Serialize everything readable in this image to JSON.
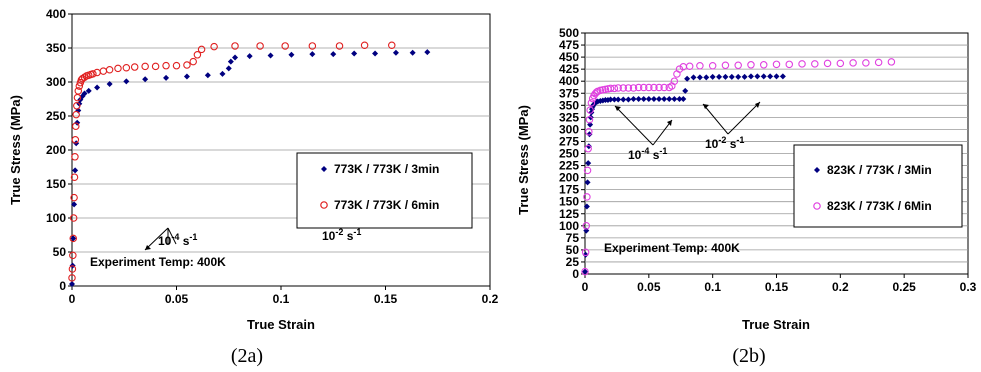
{
  "captions": [
    "(2a)",
    "(2b)"
  ],
  "chart_data": [
    {
      "type": "scatter",
      "xlabel": "True Strain",
      "ylabel": "True Stress (MPa)",
      "xlim": [
        0,
        0.2
      ],
      "ylim": [
        0,
        400
      ],
      "xticks": [
        0,
        0.05,
        0.1,
        0.15,
        0.2
      ],
      "xtick_labels": [
        "0",
        "0.05",
        "0.1",
        "0.15",
        "0.2"
      ],
      "yticks": [
        0,
        50,
        100,
        150,
        200,
        250,
        300,
        350,
        400
      ],
      "ytick_labels": [
        "0",
        "50",
        "100",
        "150",
        "200",
        "250",
        "300",
        "350",
        "400"
      ],
      "annotation": "Experiment Temp: 400K",
      "rate_labels": [
        {
          "base": "10",
          "exp1": "-4",
          "unit": " s",
          "exp2": "-1"
        },
        {
          "base": "10",
          "exp1": "-2",
          "unit": " s",
          "exp2": "-1"
        }
      ],
      "legend_position": "right",
      "series": [
        {
          "name": "773K / 773K / 3min",
          "marker": "diamond",
          "color": "#000080",
          "x": [
            0.0,
            0.0003,
            0.0006,
            0.001,
            0.0015,
            0.002,
            0.0025,
            0.003,
            0.0035,
            0.004,
            0.005,
            0.006,
            0.008,
            0.012,
            0.018,
            0.026,
            0.035,
            0.045,
            0.055,
            0.065,
            0.072,
            0.075,
            0.076,
            0.078,
            0.085,
            0.095,
            0.105,
            0.115,
            0.125,
            0.135,
            0.145,
            0.155,
            0.163,
            0.17
          ],
          "y": [
            3,
            30,
            70,
            120,
            170,
            210,
            240,
            258,
            268,
            274,
            279,
            283,
            287,
            292,
            297,
            301,
            304,
            306,
            308,
            310,
            312,
            320,
            330,
            336,
            338,
            339,
            340,
            341,
            341,
            342,
            342,
            343,
            343,
            344
          ]
        },
        {
          "name": "773K / 773K / 6min",
          "marker": "circle",
          "color": "#e02020",
          "x": [
            0.0,
            0.0002,
            0.0004,
            0.0006,
            0.0008,
            0.001,
            0.0012,
            0.0014,
            0.0016,
            0.0018,
            0.002,
            0.0023,
            0.0026,
            0.003,
            0.0035,
            0.004,
            0.0045,
            0.005,
            0.006,
            0.007,
            0.008,
            0.009,
            0.01,
            0.012,
            0.015,
            0.018,
            0.022,
            0.026,
            0.03,
            0.035,
            0.04,
            0.045,
            0.05,
            0.055,
            0.058,
            0.06,
            0.062,
            0.068,
            0.078,
            0.09,
            0.102,
            0.115,
            0.128,
            0.14,
            0.153
          ],
          "y": [
            12,
            25,
            45,
            70,
            100,
            130,
            160,
            190,
            215,
            235,
            252,
            265,
            277,
            287,
            294,
            299,
            303,
            305,
            307,
            309,
            310,
            311,
            312,
            314,
            316,
            318,
            320,
            321,
            322,
            323,
            323,
            324,
            324,
            325,
            330,
            340,
            348,
            352,
            353,
            353,
            353,
            353,
            353,
            354,
            354
          ]
        }
      ]
    },
    {
      "type": "scatter",
      "xlabel": "True Strain",
      "ylabel": "True Stress (MPa)",
      "xlim": [
        0,
        0.3
      ],
      "ylim": [
        0,
        500
      ],
      "xticks": [
        0,
        0.05,
        0.1,
        0.15,
        0.2,
        0.25,
        0.3
      ],
      "xtick_labels": [
        "0",
        "0.05",
        "0.1",
        "0.15",
        "0.2",
        "0.25",
        "0.3"
      ],
      "yticks": [
        0,
        25,
        50,
        75,
        100,
        125,
        150,
        175,
        200,
        225,
        250,
        275,
        300,
        325,
        350,
        375,
        400,
        425,
        450,
        475,
        500
      ],
      "ytick_labels": [
        "0",
        "25",
        "50",
        "75",
        "100",
        "125",
        "150",
        "175",
        "200",
        "225",
        "250",
        "275",
        "300",
        "325",
        "350",
        "375",
        "400",
        "425",
        "450",
        "475",
        "500"
      ],
      "annotation": "Experiment Temp: 400K",
      "rate_labels": [
        {
          "base": "10",
          "exp1": "-4",
          "unit": " s",
          "exp2": "-1"
        },
        {
          "base": "10",
          "exp1": "-2",
          "unit": " s",
          "exp2": "-1"
        }
      ],
      "legend_position": "right",
      "series": [
        {
          "name": "823K / 773K / 3Min",
          "marker": "diamond",
          "color": "#000080",
          "x": [
            0.0,
            0.0005,
            0.001,
            0.0015,
            0.002,
            0.0025,
            0.003,
            0.0035,
            0.004,
            0.0045,
            0.005,
            0.0055,
            0.006,
            0.0065,
            0.007,
            0.008,
            0.009,
            0.01,
            0.012,
            0.014,
            0.016,
            0.018,
            0.02,
            0.023,
            0.026,
            0.03,
            0.034,
            0.038,
            0.042,
            0.046,
            0.05,
            0.054,
            0.058,
            0.062,
            0.066,
            0.07,
            0.074,
            0.077,
            0.0785,
            0.08,
            0.085,
            0.09,
            0.095,
            0.1,
            0.105,
            0.11,
            0.115,
            0.12,
            0.125,
            0.13,
            0.135,
            0.14,
            0.145,
            0.15,
            0.155
          ],
          "y": [
            5,
            40,
            90,
            140,
            190,
            230,
            265,
            290,
            310,
            325,
            335,
            342,
            347,
            350,
            352,
            355,
            357,
            358,
            359,
            360,
            361,
            361,
            362,
            362,
            362,
            362,
            362,
            363,
            363,
            363,
            363,
            363,
            363,
            363,
            363,
            363,
            363,
            363,
            380,
            405,
            408,
            408,
            408,
            409,
            409,
            409,
            409,
            409,
            409,
            410,
            410,
            410,
            410,
            410,
            410
          ]
        },
        {
          "name": "823K / 773K / 6Min",
          "marker": "circle",
          "color": "#e040e0",
          "x": [
            0.0,
            0.0005,
            0.001,
            0.0015,
            0.002,
            0.0025,
            0.003,
            0.0035,
            0.004,
            0.005,
            0.006,
            0.007,
            0.008,
            0.009,
            0.01,
            0.012,
            0.014,
            0.016,
            0.018,
            0.02,
            0.023,
            0.026,
            0.03,
            0.034,
            0.038,
            0.042,
            0.046,
            0.05,
            0.054,
            0.058,
            0.062,
            0.066,
            0.068,
            0.07,
            0.072,
            0.074,
            0.077,
            0.082,
            0.09,
            0.1,
            0.11,
            0.12,
            0.13,
            0.14,
            0.15,
            0.16,
            0.17,
            0.18,
            0.19,
            0.2,
            0.21,
            0.22,
            0.23,
            0.24
          ],
          "y": [
            5,
            45,
            100,
            160,
            215,
            260,
            295,
            320,
            340,
            355,
            364,
            370,
            374,
            377,
            379,
            381,
            382,
            383,
            384,
            385,
            385,
            386,
            386,
            386,
            386,
            387,
            387,
            387,
            387,
            387,
            387,
            387,
            390,
            400,
            415,
            425,
            430,
            431,
            432,
            432,
            433,
            433,
            434,
            434,
            435,
            435,
            436,
            436,
            437,
            437,
            438,
            438,
            439,
            440
          ]
        }
      ]
    }
  ]
}
